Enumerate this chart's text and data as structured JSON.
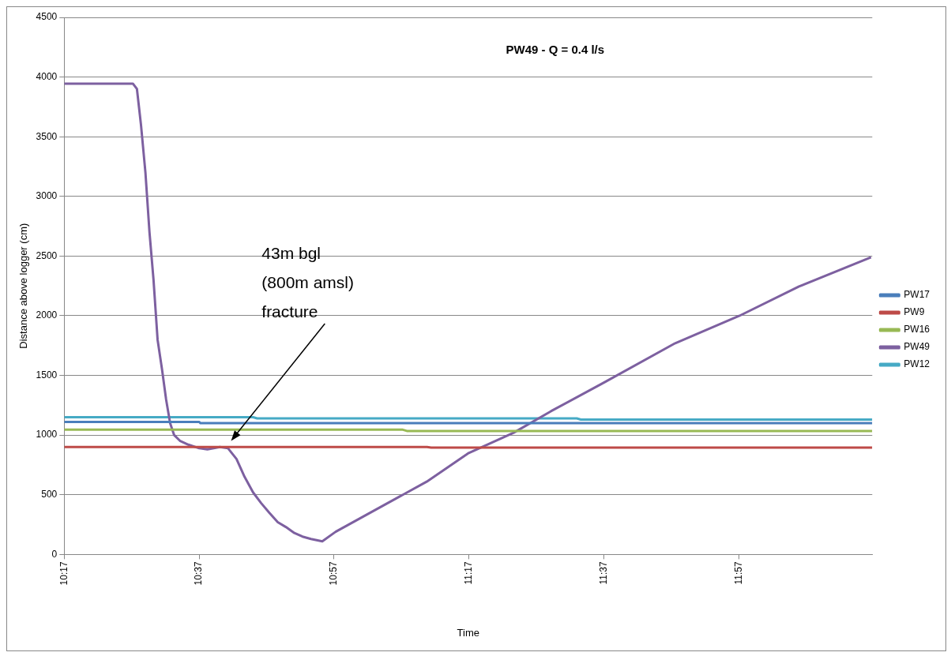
{
  "chart_data": {
    "type": "line",
    "title": "PW49 - Q = 0.4 l/s",
    "xlabel": "Time",
    "ylabel": "Distance above logger (cm)",
    "xlim": [
      10.2833,
      12.28
    ],
    "xticks": [
      {
        "value": 10.2833,
        "label": "10:17"
      },
      {
        "value": 10.6167,
        "label": "10:37"
      },
      {
        "value": 10.95,
        "label": "10:57"
      },
      {
        "value": 11.2833,
        "label": "11:17"
      },
      {
        "value": 11.6167,
        "label": "11:37"
      },
      {
        "value": 11.95,
        "label": "11:57"
      }
    ],
    "ylim": [
      0,
      4500
    ],
    "yticks": [
      0,
      500,
      1000,
      1500,
      2000,
      2500,
      3000,
      3500,
      4000,
      4500
    ],
    "grid": "y",
    "legend": "right",
    "marker": "none",
    "line_style": "solid",
    "series": [
      {
        "name": "PW17",
        "color": "#4a7ebb",
        "x": [
          10.2833,
          10.617,
          10.62,
          12.28
        ],
        "values": [
          1110,
          1110,
          1100,
          1100
        ]
      },
      {
        "name": "PW9",
        "color": "#be4b48",
        "x": [
          10.2833,
          11.18,
          11.19,
          12.28
        ],
        "values": [
          900,
          900,
          895,
          895
        ]
      },
      {
        "name": "PW16",
        "color": "#98b954",
        "x": [
          10.2833,
          11.12,
          11.13,
          12.28
        ],
        "values": [
          1045,
          1045,
          1035,
          1035
        ]
      },
      {
        "name": "PW49",
        "color": "#7d60a0",
        "x": [
          10.2833,
          10.453,
          10.463,
          10.473,
          10.484,
          10.494,
          10.504,
          10.514,
          10.525,
          10.535,
          10.545,
          10.555,
          10.57,
          10.59,
          10.617,
          10.637,
          10.668,
          10.688,
          10.709,
          10.729,
          10.75,
          10.77,
          10.79,
          10.811,
          10.831,
          10.852,
          10.872,
          10.893,
          10.921,
          10.954,
          11.077,
          11.179,
          11.283,
          11.394,
          11.486,
          11.617,
          11.793,
          11.952,
          12.099,
          12.277
        ],
        "values": [
          3945,
          3945,
          3900,
          3600,
          3200,
          2700,
          2300,
          1800,
          1550,
          1300,
          1100,
          1000,
          950,
          920,
          890,
          880,
          900,
          890,
          800,
          650,
          520,
          430,
          350,
          270,
          230,
          180,
          150,
          130,
          110,
          190,
          420,
          610,
          850,
          1020,
          1200,
          1440,
          1770,
          2000,
          2245,
          2490
        ]
      },
      {
        "name": "PW12",
        "color": "#46aac5",
        "x": [
          10.2833,
          10.75,
          10.76,
          11.55,
          11.56,
          12.28
        ],
        "values": [
          1150,
          1150,
          1140,
          1140,
          1130,
          1130
        ]
      }
    ],
    "annotations": [
      "43m bgl\n(800m amsl)\nfracture"
    ]
  }
}
